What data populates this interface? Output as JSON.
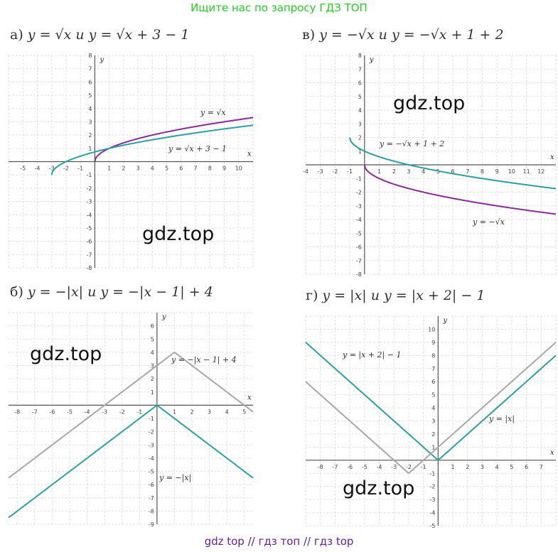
{
  "header": {
    "text": "Ищите нас по запросу ГДЗ ТОП"
  },
  "footer": {
    "text": "gdz top  //  гдз топ  //  гдз top"
  },
  "watermark": "gdz.top",
  "colors": {
    "teal": "#2ca0a0",
    "purple": "#8a2a96",
    "gray": "#a7a7a7",
    "grid": "#e2e2e2",
    "axis": "#555555"
  },
  "panels": {
    "a": {
      "label": "а)",
      "title": "y = √x    и    y = √x + 3 − 1"
    },
    "v": {
      "label": "в)",
      "title": "y = −√x    и    y = −√x + 1 + 2"
    },
    "b": {
      "label": "б)",
      "title": "y = −|x|    и    y = −|x − 1| + 4"
    },
    "g": {
      "label": "г)",
      "title": "y = |x|    и    y = |x + 2| − 1"
    }
  },
  "chart_data": [
    {
      "id": "a",
      "type": "line",
      "xlim": [
        -6,
        11
      ],
      "ylim": [
        -8,
        8
      ],
      "xticks": [
        -5,
        -4,
        -3,
        -2,
        -1,
        1,
        2,
        3,
        4,
        5,
        6,
        7,
        8,
        9,
        10
      ],
      "yticks": [
        -8,
        -7,
        -6,
        -5,
        -4,
        -3,
        -2,
        -1,
        1,
        2,
        3,
        4,
        5,
        6,
        7,
        8
      ],
      "xlabel": "x",
      "ylabel": "y",
      "series": [
        {
          "name": "y = √x",
          "color": "purple",
          "fn": "sqrt",
          "a": 1,
          "h": 0,
          "k": 0,
          "domain": [
            0,
            11
          ]
        },
        {
          "name": "y = √x + 3 − 1",
          "color": "teal",
          "fn": "sqrt",
          "a": 1,
          "h": -3,
          "k": -1,
          "domain": [
            -3,
            11
          ]
        }
      ]
    },
    {
      "id": "v",
      "type": "line",
      "xlim": [
        -4,
        13
      ],
      "ylim": [
        -8,
        8
      ],
      "xticks": [
        -4,
        -3,
        -2,
        -1,
        1,
        2,
        3,
        4,
        5,
        6,
        7,
        8,
        9,
        10,
        11,
        12
      ],
      "yticks": [
        -8,
        -7,
        -6,
        -5,
        -4,
        -3,
        -2,
        -1,
        1,
        2,
        3,
        4,
        5,
        6,
        7,
        8
      ],
      "xlabel": "x",
      "ylabel": "y",
      "series": [
        {
          "name": "y = −√x",
          "color": "purple",
          "fn": "sqrt",
          "a": -1,
          "h": 0,
          "k": 0,
          "domain": [
            0,
            13
          ]
        },
        {
          "name": "y = −√x + 1 + 2",
          "color": "teal",
          "fn": "sqrt",
          "a": -1,
          "h": -1,
          "k": 2,
          "domain": [
            -1,
            13
          ]
        }
      ]
    },
    {
      "id": "b",
      "type": "line",
      "xlim": [
        -8.5,
        5.5
      ],
      "ylim": [
        -9,
        7
      ],
      "xticks": [
        -8,
        -7,
        -6,
        -5,
        -4,
        -3,
        -2,
        -1,
        1,
        2,
        3,
        4,
        5
      ],
      "yticks": [
        -9,
        -8,
        -7,
        -6,
        -5,
        -4,
        -3,
        -2,
        -1,
        1,
        2,
        3,
        4,
        5,
        6
      ],
      "xlabel": "x",
      "ylabel": "y",
      "series": [
        {
          "name": "y = −|x|",
          "color": "teal",
          "fn": "abs",
          "a": -1,
          "h": 0,
          "k": 0,
          "domain": [
            -8.5,
            5.5
          ]
        },
        {
          "name": "y = −|x − 1| + 4",
          "color": "gray",
          "fn": "abs",
          "a": -1,
          "h": 1,
          "k": 4,
          "domain": [
            -8.5,
            5.5
          ]
        }
      ]
    },
    {
      "id": "g",
      "type": "line",
      "xlim": [
        -9,
        8
      ],
      "ylim": [
        -5,
        11
      ],
      "xticks": [
        -8,
        -7,
        -6,
        -5,
        -4,
        -3,
        -2,
        -1,
        1,
        2,
        3,
        4,
        5,
        6,
        7
      ],
      "yticks": [
        -5,
        -4,
        -3,
        -2,
        -1,
        1,
        2,
        3,
        4,
        5,
        6,
        7,
        8,
        9,
        10
      ],
      "xlabel": "x",
      "ylabel": "y",
      "series": [
        {
          "name": "y = |x|",
          "color": "teal",
          "fn": "abs",
          "a": 1,
          "h": 0,
          "k": 0,
          "domain": [
            -9,
            8
          ]
        },
        {
          "name": "y = |x + 2| − 1",
          "color": "gray",
          "fn": "abs",
          "a": 1,
          "h": -2,
          "k": -1,
          "domain": [
            -9,
            8
          ]
        }
      ]
    }
  ],
  "labels": {
    "a1": "y = √x",
    "a2": "y = √x + 3 − 1",
    "v1": "y = −√x + 1 + 2",
    "v2": "y = −√x",
    "b1": "y = −|x − 1| + 4",
    "b2": "y = −|x|",
    "g1": "y = |x + 2| − 1",
    "g2": "y = |x|"
  }
}
